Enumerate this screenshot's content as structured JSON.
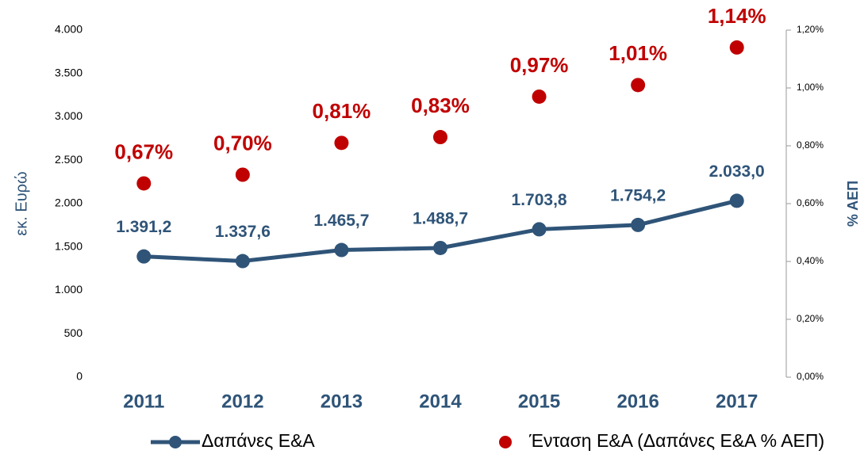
{
  "chart_data": {
    "type": "line",
    "categories": [
      "2011",
      "2012",
      "2013",
      "2014",
      "2015",
      "2016",
      "2017"
    ],
    "series": [
      {
        "name": "Δαπάνες Ε&Α",
        "color": "#2f5478",
        "values": [
          1391.2,
          1337.6,
          1465.7,
          1488.7,
          1703.8,
          1754.2,
          2033.0
        ],
        "value_labels": [
          "1.391,2",
          "1.337,6",
          "1.465,7",
          "1.488,7",
          "1.703,8",
          "1.754,2",
          "2.033,0"
        ]
      },
      {
        "name": "Ένταση Ε&Α (Δαπάνες Ε&Α % ΑΕΠ)",
        "color": "#c00000",
        "axis": "y2",
        "marker_only": true,
        "values": [
          0.67,
          0.7,
          0.81,
          0.83,
          0.97,
          1.01,
          1.14
        ],
        "value_labels": [
          "0,67%",
          "0,70%",
          "0,81%",
          "0,83%",
          "0,97%",
          "1,01%",
          "1,14%"
        ]
      }
    ],
    "ylabel": "εκ. Ευρώ",
    "y2label": "% ΑΕΠ",
    "ylim": [
      0,
      4000
    ],
    "yticks": [
      0,
      500,
      {
        "value": 1000,
        "label": "1.000"
      },
      {
        "value": 1500,
        "label": "1.500"
      },
      {
        "value": 2000,
        "label": "2.000"
      },
      {
        "value": 2500,
        "label": "2.500"
      },
      {
        "value": 3000,
        "label": "3.000"
      },
      {
        "value": 3500,
        "label": "3.500"
      },
      {
        "value": 4000,
        "label": "4.000"
      }
    ],
    "y2lim": [
      0,
      1.2
    ],
    "y2ticks": [
      {
        "value": 0,
        "label": "0,00%"
      },
      {
        "value": 0.2,
        "label": "0,20%"
      },
      {
        "value": 0.4,
        "label": "0,40%"
      },
      {
        "value": 0.6,
        "label": "0,60%"
      },
      {
        "value": 0.8,
        "label": "0,80%"
      },
      {
        "value": 1.0,
        "label": "1,00%"
      },
      {
        "value": 1.2,
        "label": "1,20%"
      }
    ],
    "grid": false,
    "legend": "bottom"
  }
}
